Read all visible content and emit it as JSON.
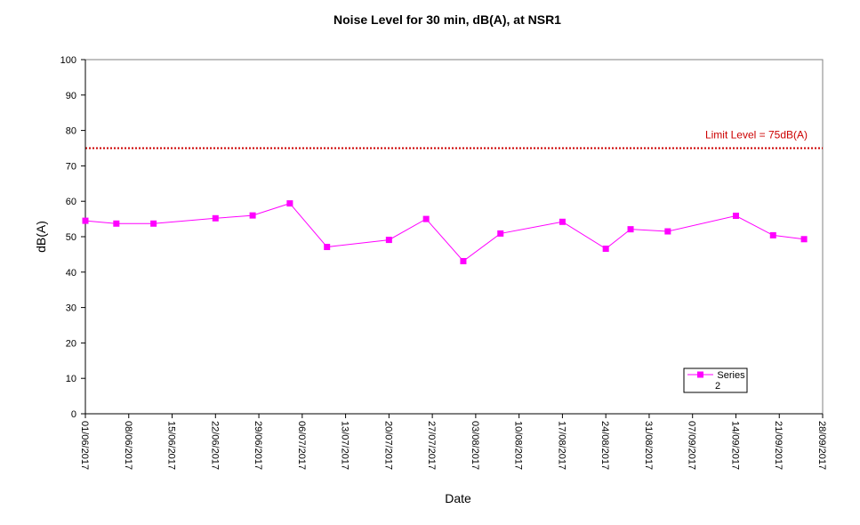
{
  "chart_data": {
    "type": "line",
    "title": "Noise Level for 30 min, dB(A), at NSR1",
    "xlabel": "Date",
    "ylabel": "dB(A)",
    "ylim": [
      0,
      100
    ],
    "yticks": [
      0,
      10,
      20,
      30,
      40,
      50,
      60,
      70,
      80,
      90,
      100
    ],
    "xlim": [
      "01/06/2017",
      "28/09/2017"
    ],
    "xticks": [
      "01/06/2017",
      "08/06/2017",
      "15/06/2017",
      "22/06/2017",
      "29/06/2017",
      "06/07/2017",
      "13/07/2017",
      "20/07/2017",
      "27/07/2017",
      "03/08/2017",
      "10/08/2017",
      "17/08/2017",
      "24/08/2017",
      "31/08/2017",
      "07/09/2017",
      "14/09/2017",
      "21/09/2017",
      "28/09/2017"
    ],
    "grid": false,
    "legend_position": "bottom-right",
    "series": [
      {
        "name": "Series 2",
        "color": "#ff00ff",
        "marker": "square",
        "x": [
          "01/06/2017",
          "06/06/2017",
          "12/06/2017",
          "22/06/2017",
          "28/06/2017",
          "04/07/2017",
          "10/07/2017",
          "20/07/2017",
          "26/07/2017",
          "01/08/2017",
          "07/08/2017",
          "17/08/2017",
          "24/08/2017",
          "28/08/2017",
          "03/09/2017",
          "14/09/2017",
          "20/09/2017",
          "25/09/2017"
        ],
        "values": [
          54.5,
          53.7,
          53.7,
          55.2,
          56.0,
          59.4,
          47.1,
          49.1,
          55.0,
          43.1,
          50.9,
          54.2,
          46.6,
          52.1,
          51.5,
          55.9,
          50.4,
          49.3
        ]
      }
    ],
    "reference_line": {
      "value": 75,
      "label": "Limit Level  = 75dB(A)",
      "color": "#cc0000",
      "style": "dotted"
    }
  }
}
